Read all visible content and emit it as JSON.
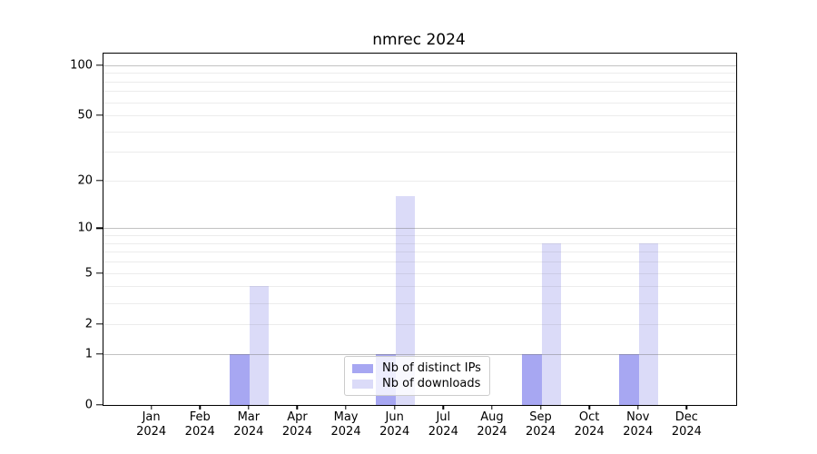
{
  "chart_data": {
    "type": "bar",
    "title": "nmrec 2024",
    "categories": [
      "Jan",
      "Feb",
      "Mar",
      "Apr",
      "May",
      "Jun",
      "Jul",
      "Aug",
      "Sep",
      "Oct",
      "Nov",
      "Dec"
    ],
    "x_tick_year": "2024",
    "series": [
      {
        "name": "Nb of distinct IPs",
        "color": "#a7a7f2",
        "values": [
          0,
          0,
          1,
          0,
          0,
          1,
          0,
          0,
          1,
          0,
          1,
          0
        ]
      },
      {
        "name": "Nb of downloads",
        "color": "#dbdbf8",
        "values": [
          0,
          0,
          4,
          0,
          0,
          16,
          0,
          0,
          8,
          0,
          8,
          0
        ]
      }
    ],
    "yscale": "log1p",
    "ylim": [
      0,
      117
    ],
    "y_tick_values": [
      0,
      1,
      2,
      5,
      10,
      20,
      50,
      100
    ],
    "y_tick_labels": [
      "0",
      "1",
      "2",
      "5",
      "10",
      "20",
      "50",
      "100"
    ],
    "y_major_gridlines": [
      1,
      10,
      100
    ],
    "y_minor_gridlines": [
      2,
      3,
      4,
      5,
      6,
      7,
      8,
      9,
      20,
      30,
      40,
      50,
      60,
      70,
      80,
      90
    ],
    "grid": true,
    "legend_position": "lower center",
    "colors": {
      "major_grid": "rgba(110,110,110,0.42)",
      "minor_grid": "rgba(110,110,110,0.13)",
      "spine": "#000000",
      "background": "#ffffff"
    }
  }
}
